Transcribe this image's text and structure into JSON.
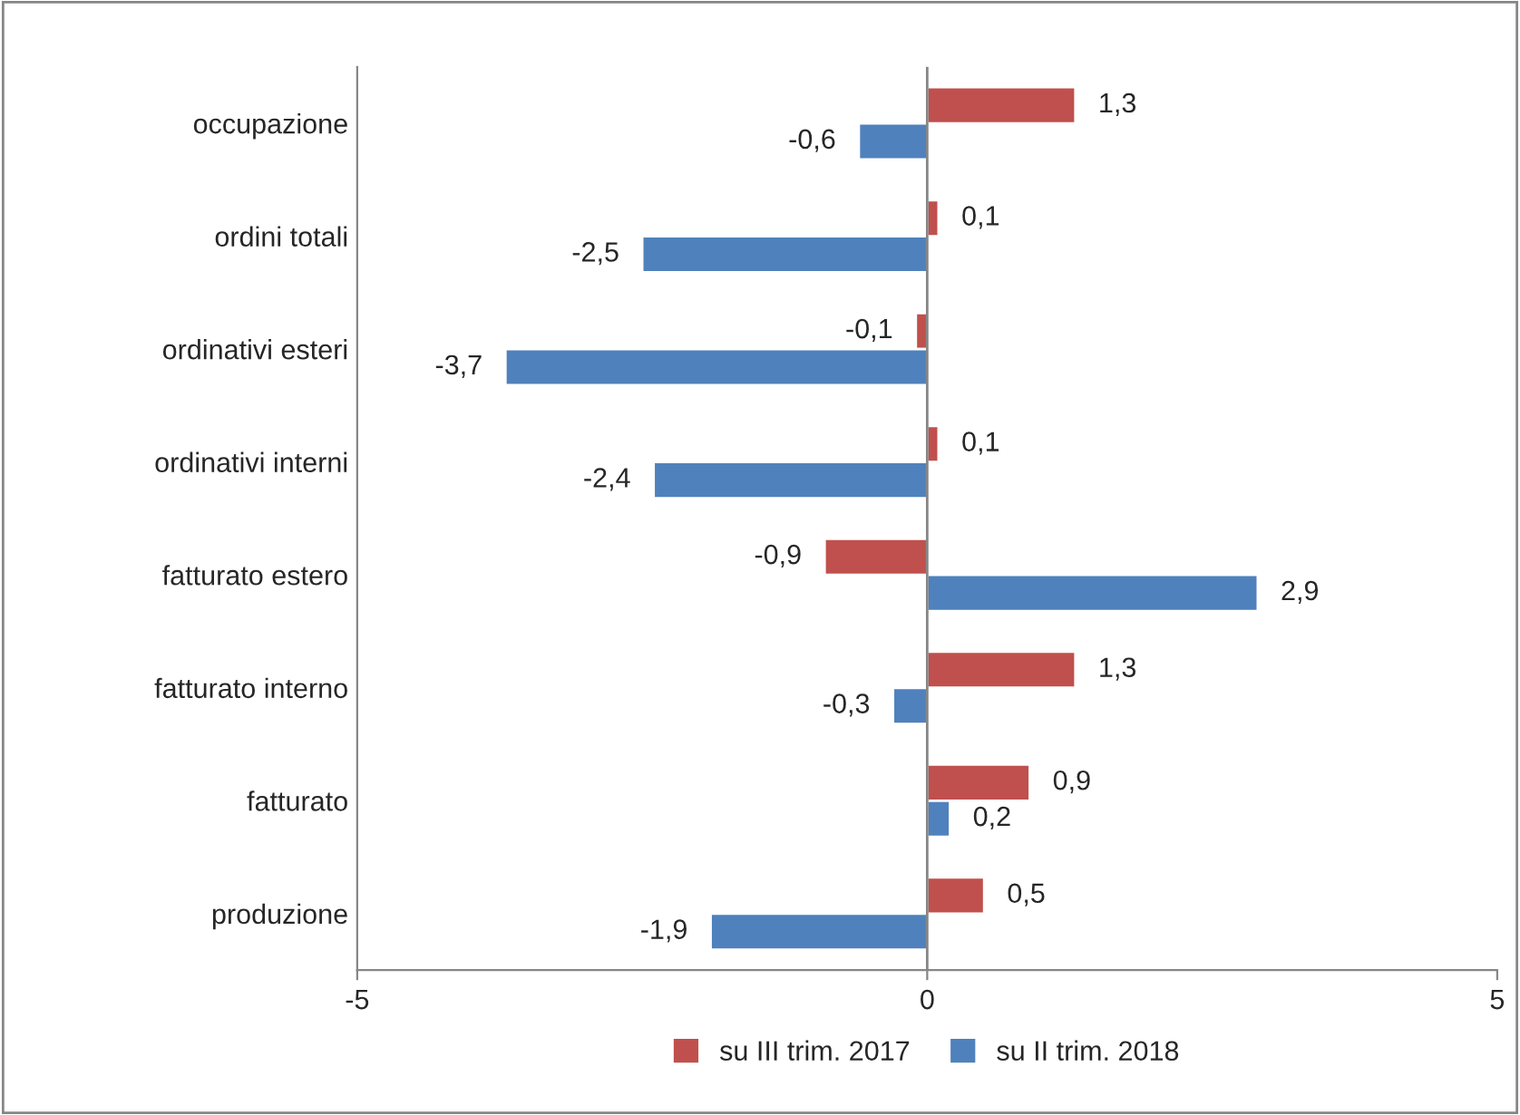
{
  "chart_data": {
    "type": "bar",
    "orientation": "horizontal",
    "categories": [
      "occupazione",
      "ordini totali",
      "ordinativi esteri",
      "ordinativi interni",
      "fatturato estero",
      "fatturato interno",
      "fatturato",
      "produzione"
    ],
    "series": [
      {
        "name": "su III trim. 2017",
        "color": "#c0504d",
        "values": [
          1.3,
          0.1,
          -0.1,
          0.1,
          -0.9,
          1.3,
          0.9,
          0.5
        ],
        "value_labels": [
          "1,3",
          "0,1",
          "-0,1",
          "0,1",
          "-0,9",
          "1,3",
          "0,9",
          "0,5"
        ]
      },
      {
        "name": "su II trim. 2018",
        "color": "#4f81bd",
        "values": [
          -0.6,
          -2.5,
          -3.7,
          -2.4,
          2.9,
          -0.3,
          0.2,
          -1.9
        ],
        "value_labels": [
          "-0,6",
          "-2,5",
          "-3,7",
          "-2,4",
          "2,9",
          "-0,3",
          "0,2",
          "-1,9"
        ]
      }
    ],
    "xlim": [
      -5,
      5
    ],
    "xticks": [
      -5,
      0,
      5
    ],
    "ref_lines": [
      {
        "axis": "x",
        "value": 0,
        "color": "#868686"
      }
    ],
    "grid": false,
    "legend": "bottom"
  }
}
